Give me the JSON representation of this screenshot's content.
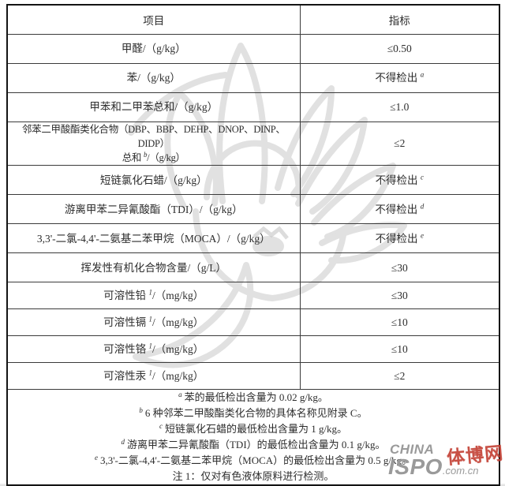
{
  "table": {
    "header_item": "项目",
    "header_index": "指标",
    "rows": [
      {
        "item": [
          [
            "t",
            "甲醛/（g/kg）"
          ]
        ],
        "value": [
          [
            "t",
            "≤0.50"
          ]
        ]
      },
      {
        "item": [
          [
            "t",
            "苯/（g/kg）"
          ]
        ],
        "value": [
          [
            "t",
            "不得检出 "
          ],
          [
            "s",
            "a"
          ]
        ]
      },
      {
        "item": [
          [
            "t",
            "甲苯和二甲苯总和/（g/kg）"
          ]
        ],
        "value": [
          [
            "t",
            "≤1.0"
          ]
        ]
      },
      {
        "item": [
          [
            "t",
            "邻苯二甲酸酯类化合物（DBP、BBP、DEHP、DNOP、DINP、DIDP）"
          ],
          [
            "b"
          ],
          [
            "t",
            "总和 "
          ],
          [
            "s",
            "b"
          ],
          [
            "t",
            "/（g/kg）"
          ]
        ],
        "value": [
          [
            "t",
            "≤2"
          ]
        ]
      },
      {
        "item": [
          [
            "t",
            "短链氯化石蜡/（g/kg）"
          ]
        ],
        "value": [
          [
            "t",
            "不得检出 "
          ],
          [
            "s",
            "c"
          ]
        ]
      },
      {
        "item": [
          [
            "t",
            "游离甲苯二异氰酸酯（TDI）/（g/kg）"
          ]
        ],
        "value": [
          [
            "t",
            "不得检出 "
          ],
          [
            "s",
            "d"
          ]
        ]
      },
      {
        "item": [
          [
            "t",
            "3,3'-二氯-4,4'-二氨基二苯甲烷（MOCA）/（g/kg）"
          ]
        ],
        "value": [
          [
            "t",
            "不得检出 "
          ],
          [
            "s",
            "e"
          ]
        ]
      },
      {
        "item": [
          [
            "t",
            "挥发性有机化合物含量/（g/L）"
          ]
        ],
        "value": [
          [
            "t",
            "≤30"
          ]
        ]
      },
      {
        "item": [
          [
            "t",
            "可溶性铅 "
          ],
          [
            "s",
            "1"
          ],
          [
            "t",
            "/（mg/kg）"
          ]
        ],
        "value": [
          [
            "t",
            "≤30"
          ]
        ]
      },
      {
        "item": [
          [
            "t",
            "可溶性镉 "
          ],
          [
            "s",
            "1"
          ],
          [
            "t",
            "/（mg/kg）"
          ]
        ],
        "value": [
          [
            "t",
            "≤10"
          ]
        ]
      },
      {
        "item": [
          [
            "t",
            "可溶性铬 "
          ],
          [
            "s",
            "1"
          ],
          [
            "t",
            "/（mg/kg）"
          ]
        ],
        "value": [
          [
            "t",
            "≤10"
          ]
        ]
      },
      {
        "item": [
          [
            "t",
            "可溶性汞 "
          ],
          [
            "s",
            "1"
          ],
          [
            "t",
            "/（mg/kg）"
          ]
        ],
        "value": [
          [
            "t",
            "≤2"
          ]
        ]
      }
    ],
    "footnotes": [
      [
        [
          "s",
          "a"
        ],
        [
          "t",
          "苯的最低检出含量为 0.02 g/kg。"
        ]
      ],
      [
        [
          "s",
          "b"
        ],
        [
          "t",
          "6 种邻苯二甲酸酯类化合物的具体名称见附录 C。"
        ]
      ],
      [
        [
          "s",
          "c"
        ],
        [
          "t",
          "短链氯化石蜡的最低检出含量为 1 g/kg。"
        ]
      ],
      [
        [
          "s",
          "d"
        ],
        [
          "t",
          "游离甲苯二异氰酸酯（TDI）的最低检出含量为 0.1 g/kg。"
        ]
      ],
      [
        [
          "s",
          "e"
        ],
        [
          "t",
          "3,3'-二氯-4,4'-二氨基二苯甲烷（MOCA）的最低检出含量为 0.5 g/kg。"
        ]
      ],
      [
        [
          "t",
          "注 1：仅对有色液体原料进行检测。"
        ]
      ]
    ]
  },
  "logo": {
    "line1": "CHINA",
    "line2": "ISPO",
    "suffix": ".com.cn",
    "cn": "体博网"
  },
  "colors": {
    "border_outer": "#141414",
    "border_inner": "#3b3b3b",
    "text": "#2d2d2d",
    "watermark_gray": "#dedede",
    "logo_gray": "#9a9a9a",
    "logo_red": "#c23e32"
  }
}
